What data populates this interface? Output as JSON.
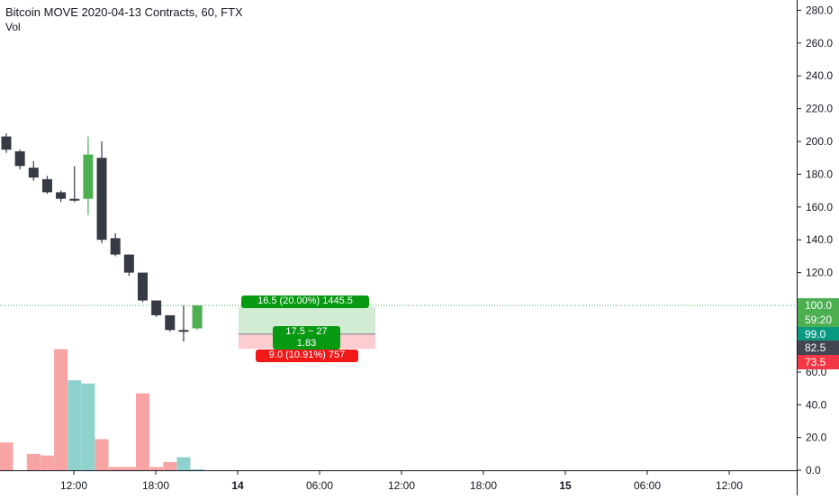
{
  "legend": {
    "title": "Bitcoin MOVE 2020-04-13 Contracts, 60, FTX",
    "volume_label": "Vol"
  },
  "chart_data": {
    "type": "candlestick",
    "title": "Bitcoin MOVE 2020-04-13 Contracts, 60, FTX",
    "y_price_ticks": [
      "280.0",
      "260.0",
      "240.0",
      "220.0",
      "200.0",
      "180.0",
      "160.0",
      "140.0",
      "120.0",
      "100.0",
      "80.0",
      "60.0",
      "40.0",
      "20.0",
      "0.0"
    ],
    "y_price_visible": [
      "280.0",
      "260.0",
      "240.0",
      "220.0",
      "200.0",
      "180.0",
      "160.0",
      "140.0",
      "120.0"
    ],
    "y_volume_visible": [
      "60.0",
      "40.0",
      "20.0",
      "0.0"
    ],
    "x_ticks": [
      "12:00",
      "18:00",
      "14",
      "06:00",
      "12:00",
      "18:00",
      "15",
      "06:00",
      "12:00"
    ],
    "price_range": [
      96,
      282
    ],
    "up_color": "#4caf50",
    "down_color": "#363a45",
    "candles": [
      {
        "o": 203,
        "h": 205,
        "l": 193,
        "c": 195
      },
      {
        "o": 194,
        "h": 195,
        "l": 183,
        "c": 185
      },
      {
        "o": 184,
        "h": 188,
        "l": 176,
        "c": 178
      },
      {
        "o": 177,
        "h": 179,
        "l": 168,
        "c": 169
      },
      {
        "o": 169,
        "h": 170,
        "l": 163,
        "c": 165
      },
      {
        "o": 165,
        "h": 185,
        "l": 163,
        "c": 165
      },
      {
        "o": 165,
        "h": 203,
        "l": 155,
        "c": 192
      },
      {
        "o": 190,
        "h": 200,
        "l": 138,
        "c": 140
      },
      {
        "o": 141,
        "h": 144,
        "l": 130,
        "c": 131
      },
      {
        "o": 131,
        "h": 131,
        "l": 118,
        "c": 120
      },
      {
        "o": 120,
        "h": 120,
        "l": 102,
        "c": 103
      },
      {
        "o": 103,
        "h": 103,
        "l": 93,
        "c": 94
      },
      {
        "o": 94,
        "h": 94,
        "l": 84,
        "c": 85
      },
      {
        "o": 85,
        "h": 100,
        "l": 78,
        "c": 85
      },
      {
        "o": 86,
        "h": 100,
        "l": 85,
        "c": 100
      }
    ],
    "volume_range": [
      0,
      80
    ],
    "volume": [
      {
        "v": 17,
        "up": false
      },
      {
        "v": 0,
        "up": false
      },
      {
        "v": 10,
        "up": false
      },
      {
        "v": 9,
        "up": false
      },
      {
        "v": 74,
        "up": false
      },
      {
        "v": 55,
        "up": true
      },
      {
        "v": 53,
        "up": true
      },
      {
        "v": 19,
        "up": false
      },
      {
        "v": 2,
        "up": false
      },
      {
        "v": 2,
        "up": false
      },
      {
        "v": 47,
        "up": false
      },
      {
        "v": 2,
        "up": false
      },
      {
        "v": 5,
        "up": false
      },
      {
        "v": 8,
        "up": true
      },
      {
        "v": 0.6,
        "up": true
      }
    ],
    "volume_down_color": "#f8a4a4",
    "volume_up_color": "#8fd1cc",
    "long_position": {
      "entry": 82.5,
      "target": 99.0,
      "stop": 73.5,
      "target_label": "16.5 (20.00%) 1445.5",
      "center_label_line1": "17.5 ~ 27",
      "center_label_line2": "1.83",
      "stop_label": "9.0 (10.91%) 757"
    },
    "price_axis_labels": [
      {
        "text": "100.0",
        "value": 100.0,
        "color": "#4caf50"
      },
      {
        "text": "59:20",
        "value": 100.0,
        "color": "#4caf50"
      },
      {
        "text": "99.0",
        "value": 99.0,
        "color": "#089981"
      },
      {
        "text": "82.5",
        "value": 82.5,
        "color": "#434651"
      },
      {
        "text": "73.5",
        "value": 73.5,
        "color": "#f23645"
      }
    ],
    "last_price": 100.0
  }
}
